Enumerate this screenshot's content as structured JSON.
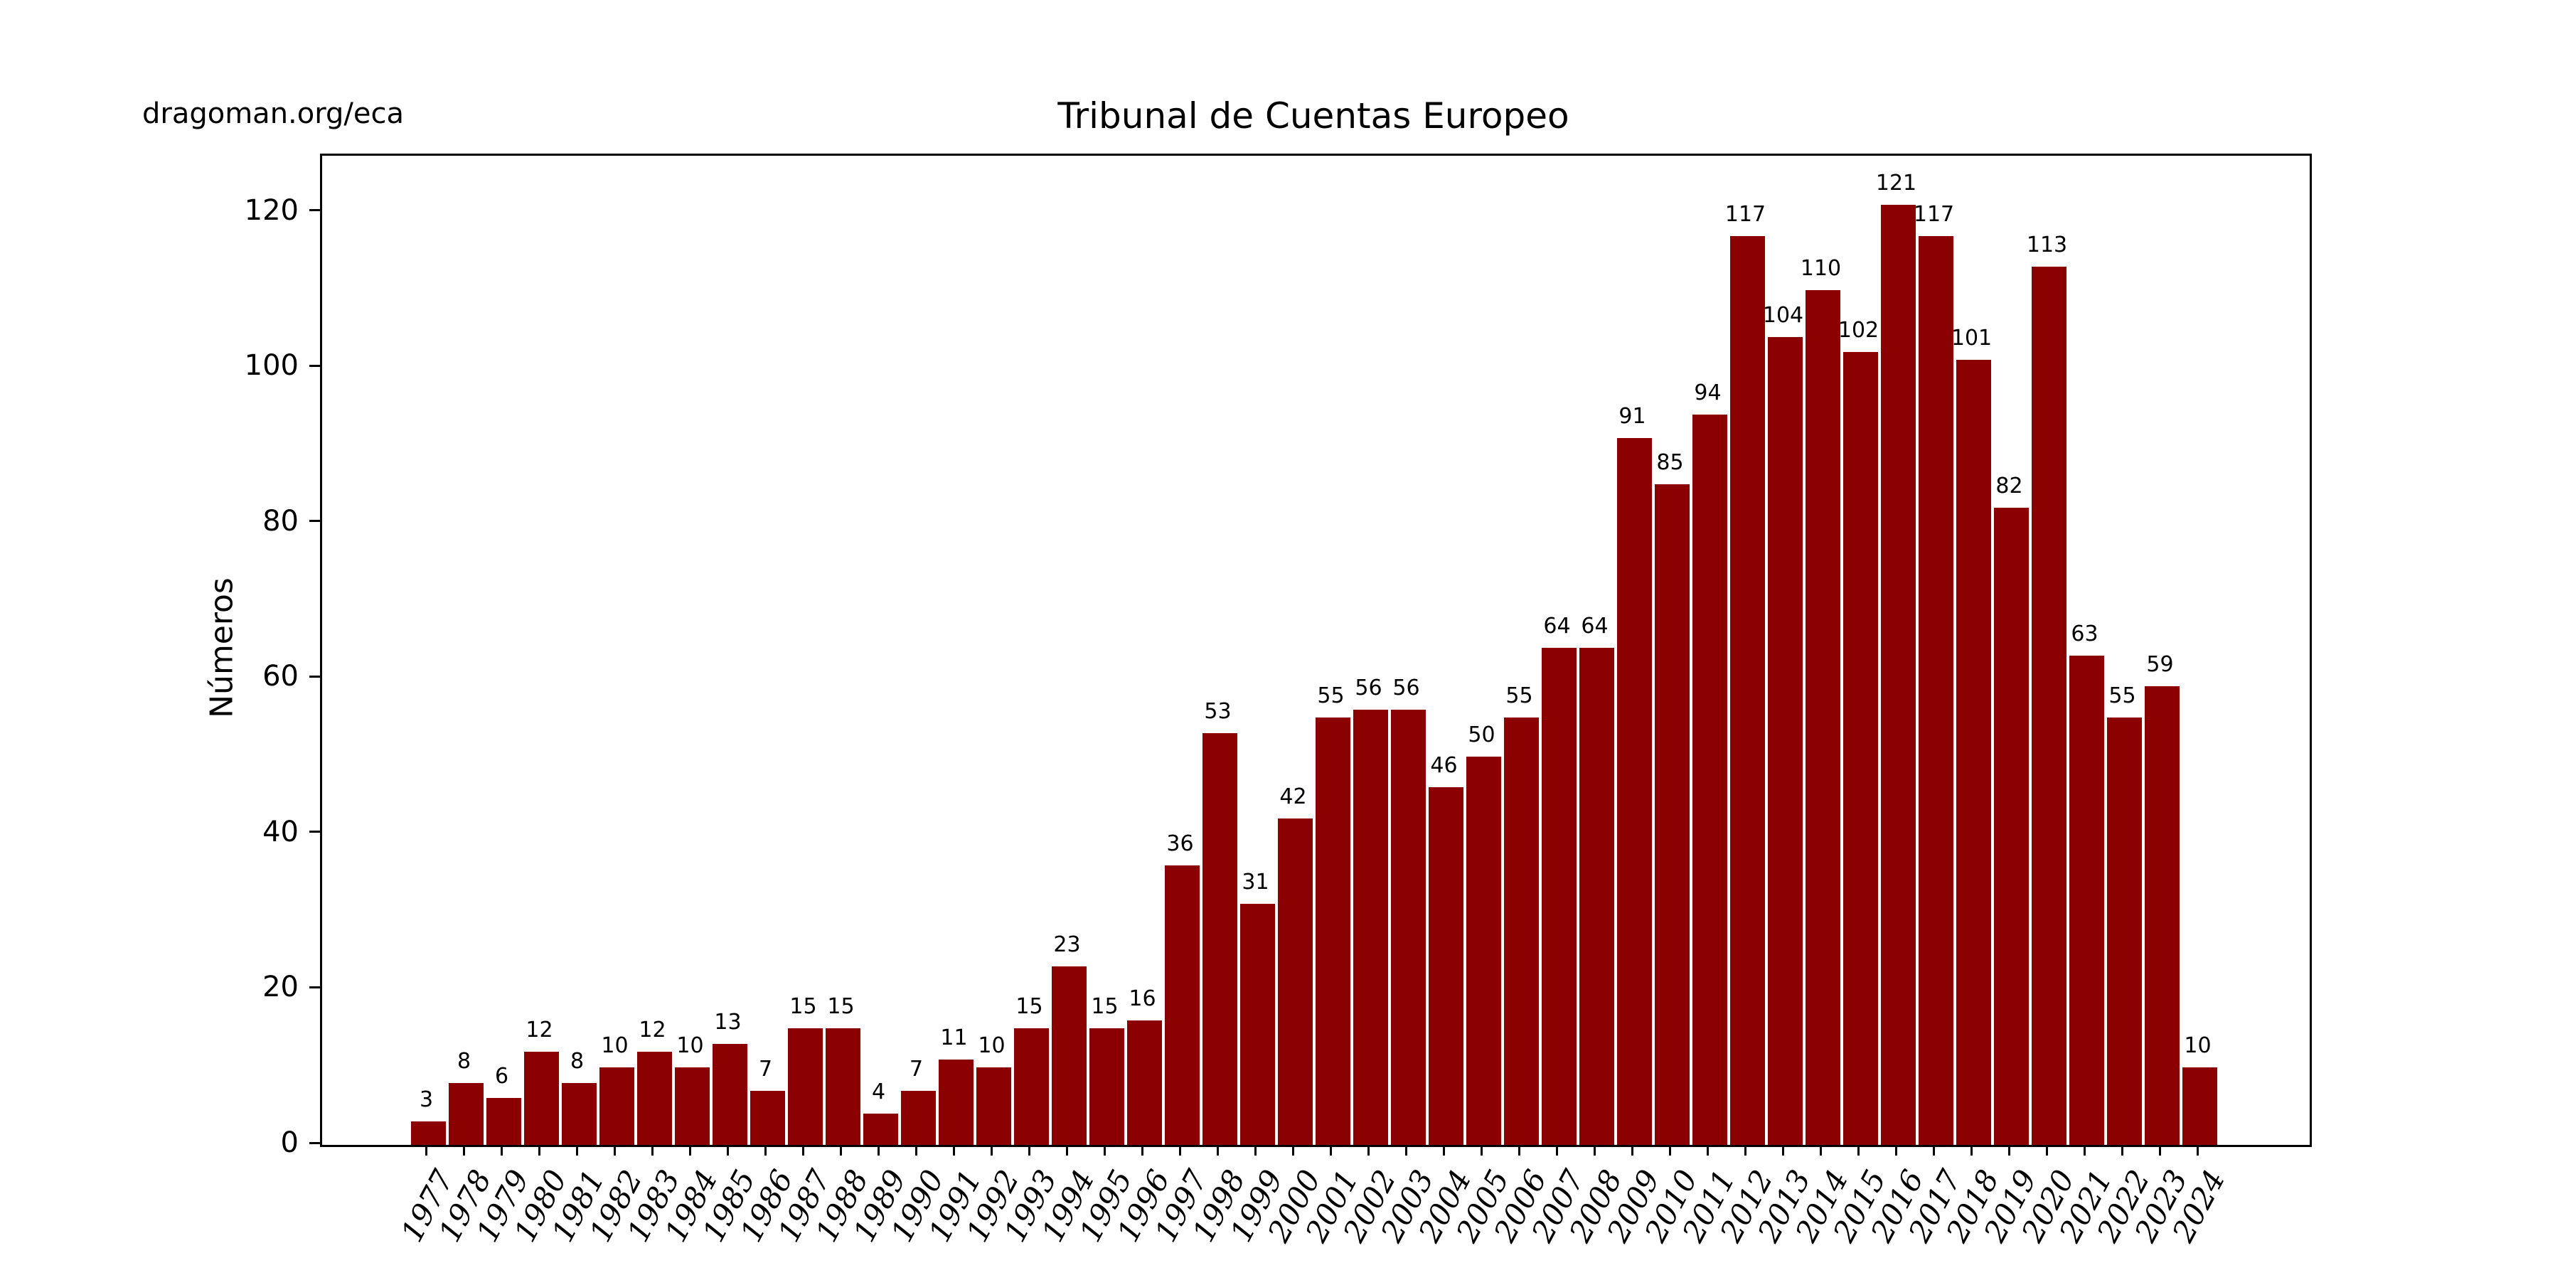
{
  "header": {
    "watermark": "dragoman.org/eca"
  },
  "chart_data": {
    "type": "bar",
    "title": "Tribunal de Cuentas Europeo",
    "xlabel": "",
    "ylabel": "Números",
    "categories": [
      "1977",
      "1978",
      "1979",
      "1980",
      "1981",
      "1982",
      "1983",
      "1984",
      "1985",
      "1986",
      "1987",
      "1988",
      "1989",
      "1990",
      "1991",
      "1992",
      "1993",
      "1994",
      "1995",
      "1996",
      "1997",
      "1998",
      "1999",
      "2000",
      "2001",
      "2002",
      "2003",
      "2004",
      "2005",
      "2006",
      "2007",
      "2008",
      "2009",
      "2010",
      "2011",
      "2012",
      "2013",
      "2014",
      "2015",
      "2016",
      "2017",
      "2018",
      "2019",
      "2020",
      "2021",
      "2022",
      "2023",
      "2024"
    ],
    "values": [
      3,
      8,
      6,
      12,
      8,
      10,
      12,
      10,
      13,
      7,
      15,
      15,
      4,
      7,
      11,
      10,
      15,
      23,
      15,
      16,
      36,
      53,
      31,
      42,
      55,
      56,
      56,
      46,
      50,
      55,
      64,
      64,
      91,
      85,
      94,
      117,
      104,
      110,
      102,
      121,
      117,
      101,
      82,
      113,
      63,
      55,
      59,
      10
    ],
    "bar_labels": true,
    "yticks": [
      0,
      20,
      40,
      60,
      80,
      100,
      120
    ],
    "ylim": [
      0,
      127.3
    ],
    "grid": false,
    "legend": null,
    "bar_color": "#8B0000",
    "text_color": "#000000",
    "background_color": "#ffffff"
  }
}
